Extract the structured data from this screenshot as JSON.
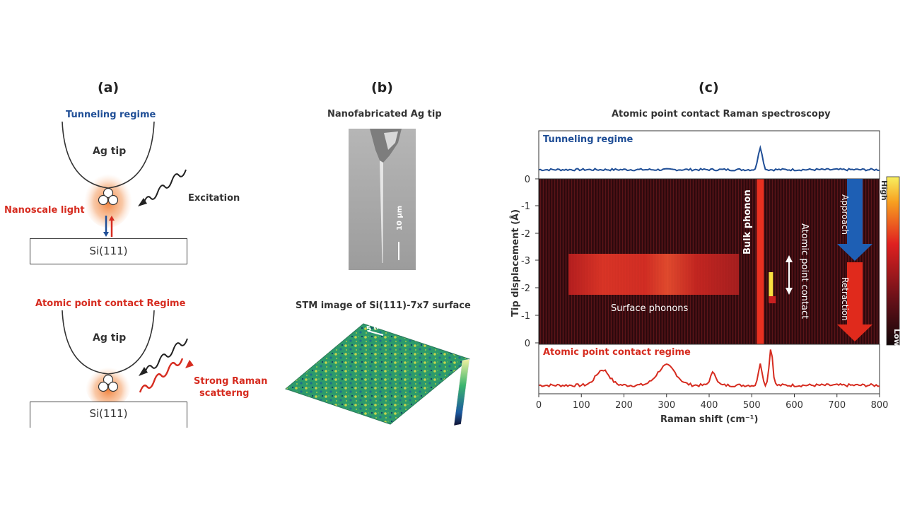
{
  "panels": {
    "a": {
      "letter": "(a)",
      "top_regime": "Tunneling regime",
      "tip_label_top": "Ag tip",
      "excitation": "Excitation",
      "nanoscale_light": "Nanoscale light",
      "substrate_top": "Si(111)",
      "bottom_regime": "Atomic point contact Regime",
      "tip_label_bottom": "Ag tip",
      "strong_raman_1": "Strong Raman",
      "strong_raman_2": "scatterng",
      "substrate_bottom": "Si(111)"
    },
    "b": {
      "letter": "(b)",
      "tip_title": "Nanofabricated Ag tip",
      "scale_bar": "10 μm",
      "stm_title": "STM image of Si(111)-7x7 surface",
      "stm_scale": "5 nm"
    },
    "c": {
      "letter": "(c)",
      "title": "Atomic point contact Raman spectroscopy",
      "top_spectrum_label": "Tunneling regime",
      "bottom_spectrum_label": "Atomic point contact regime",
      "bulk_phonon": "Bulk phonon",
      "surface_phonons": "Surface phonons",
      "atomic_point_contact": "Atomic point contact",
      "approach": "Approach",
      "retraction": "Retraction",
      "colorbar_high": "High",
      "colorbar_low": "Low"
    }
  },
  "colors": {
    "tunneling": "#1f4e96",
    "contact": "#d62c20",
    "approach_arrow": "#1e5fb4",
    "retraction_arrow": "#e02a1c"
  },
  "chart_data": {
    "type": "heatmap",
    "title": "Atomic point contact Raman spectroscopy",
    "xlabel": "Raman shift (cm⁻¹)",
    "ylabel": "Tip displacement (Å)",
    "xlim": [
      0,
      800
    ],
    "x_ticks": [
      0,
      100,
      200,
      300,
      400,
      500,
      600,
      700,
      800
    ],
    "y_ticks_approach": [
      "0",
      "-1",
      "-2",
      "-3"
    ],
    "y_ticks_retraction": [
      "-3",
      "-2",
      "-1",
      "0"
    ],
    "features": [
      {
        "name": "Bulk phonon",
        "shift_cm": 520
      },
      {
        "name": "Surface phonons",
        "shift_range_cm": [
          70,
          470
        ]
      },
      {
        "name": "Atomic point contact",
        "shift_cm": 545
      }
    ],
    "series": [
      {
        "name": "Tunneling regime",
        "peaks_cm": [
          520
        ]
      },
      {
        "name": "Atomic point contact regime",
        "peaks_cm": [
          150,
          300,
          410,
          520,
          545
        ]
      }
    ]
  }
}
